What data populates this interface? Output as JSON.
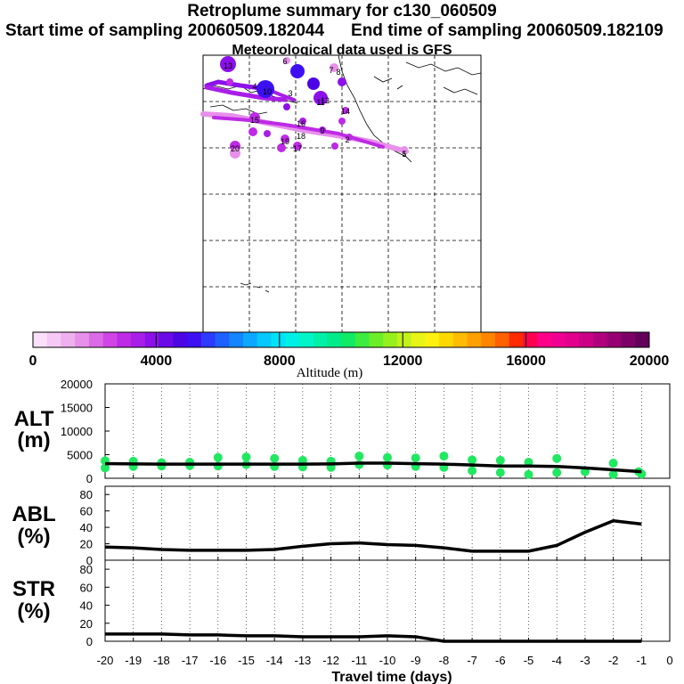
{
  "header": {
    "title": "Retroplume summary for c130_060509",
    "start": "Start time of sampling 20060509.182044",
    "end": "End time of sampling 20060509.182109",
    "met": "Meteorological data used is GFS"
  },
  "colorbar": {
    "label": "Altitude  (m)",
    "ticks": [
      "0",
      "4000",
      "8000",
      "12000",
      "16000",
      "20000"
    ],
    "colors": [
      "#fbe0fb",
      "#f5c8f5",
      "#eeb0ee",
      "#e690ea",
      "#dc6ae6",
      "#cf45e6",
      "#be2ae6",
      "#a81ee8",
      "#8c10ea",
      "#6a0ae6",
      "#4c06e6",
      "#3c10f2",
      "#2e3aff",
      "#1e60ff",
      "#1484ff",
      "#0ca8ff",
      "#06c8ff",
      "#00e2f8",
      "#00f0e6",
      "#00f6c8",
      "#00f0a8",
      "#00ec88",
      "#10ea66",
      "#3cec40",
      "#6aee28",
      "#96f01e",
      "#c2f21a",
      "#e8f416",
      "#fff010",
      "#ffd800",
      "#ffbc00",
      "#ffa000",
      "#ff8400",
      "#ff6000",
      "#ff2a00",
      "#ff0050",
      "#ff0088",
      "#f00090",
      "#e0008c",
      "#ca0086",
      "#b00080",
      "#960072",
      "#7c0066",
      "#62005a"
    ]
  },
  "map": {
    "plume_numbers": [
      "6",
      "7",
      "8",
      "12",
      "13",
      "5",
      "15",
      "16",
      "17",
      "18",
      "19",
      "20",
      "1",
      "2",
      "3",
      "4",
      "9",
      "10",
      "11",
      "14"
    ]
  },
  "panels": [
    {
      "label_line1": "ALT",
      "label_line2": "(m)",
      "yticks": [
        "20000",
        "15000",
        "10000",
        "5000",
        "0"
      ]
    },
    {
      "label_line1": "ABL",
      "label_line2": "(%)",
      "yticks": [
        "80",
        "60",
        "40",
        "20",
        "0"
      ]
    },
    {
      "label_line1": "STR",
      "label_line2": "(%)",
      "yticks": [
        "80",
        "60",
        "40",
        "20",
        "0"
      ]
    }
  ],
  "xaxis": {
    "ticks": [
      "-20",
      "-19",
      "-18",
      "-17",
      "-16",
      "-15",
      "-14",
      "-13",
      "-12",
      "-11",
      "-10",
      "-9",
      "-8",
      "-7",
      "-6",
      "-5",
      "-4",
      "-3",
      "-2",
      "-1",
      "0"
    ],
    "label": "Travel time (days)"
  },
  "chart_data": {
    "type": "line",
    "title": "Retroplume summary for c130_060509",
    "x": [
      -20,
      -19,
      -18,
      -17,
      -16,
      -15,
      -14,
      -13,
      -12,
      -11,
      -10,
      -9,
      -8,
      -7,
      -6,
      -5,
      -4,
      -3,
      -2,
      -1
    ],
    "xlabel": "Travel time (days)",
    "xlim": [
      -20,
      0
    ],
    "series": [
      {
        "name": "ALT (m)",
        "ylim": [
          0,
          20000
        ],
        "values": [
          3100,
          3050,
          3000,
          3000,
          3000,
          3000,
          3000,
          3000,
          3050,
          3200,
          3200,
          3100,
          3000,
          2800,
          2600,
          2600,
          2500,
          2200,
          1800,
          1400
        ]
      },
      {
        "name": "ABL (%)",
        "ylim": [
          0,
          90
        ],
        "values": [
          16,
          15,
          13,
          12,
          12,
          12,
          13,
          17,
          20,
          21,
          19,
          18,
          15,
          11,
          11,
          11,
          18,
          34,
          48,
          44
        ]
      },
      {
        "name": "STR (%)",
        "ylim": [
          0,
          90
        ],
        "values": [
          8,
          8,
          8,
          7,
          7,
          6,
          6,
          5,
          5,
          5,
          6,
          5,
          0,
          0,
          0,
          0,
          0,
          0,
          0,
          0
        ]
      }
    ],
    "alt_scatter": {
      "color": "#20e860",
      "x": [
        -20,
        -20,
        -19,
        -19,
        -18,
        -18,
        -17,
        -17,
        -16,
        -16,
        -15,
        -15,
        -14,
        -14,
        -13,
        -13,
        -12,
        -12,
        -11,
        -11,
        -10,
        -10,
        -9,
        -9,
        -8,
        -8,
        -7,
        -7,
        -6,
        -6,
        -5,
        -5,
        -4,
        -4,
        -3,
        -2,
        -2,
        -1.1,
        -1
      ],
      "y": [
        3700,
        2200,
        3600,
        2500,
        3300,
        2600,
        3400,
        2700,
        4400,
        2600,
        4500,
        2900,
        4200,
        2500,
        3800,
        2400,
        3600,
        2300,
        4700,
        2900,
        4400,
        2800,
        4300,
        2500,
        4700,
        2300,
        3900,
        1600,
        3800,
        1200,
        3400,
        800,
        4200,
        1200,
        1400,
        3200,
        800,
        1400,
        900
      ]
    },
    "colorbar_range": [
      0,
      20000
    ]
  }
}
